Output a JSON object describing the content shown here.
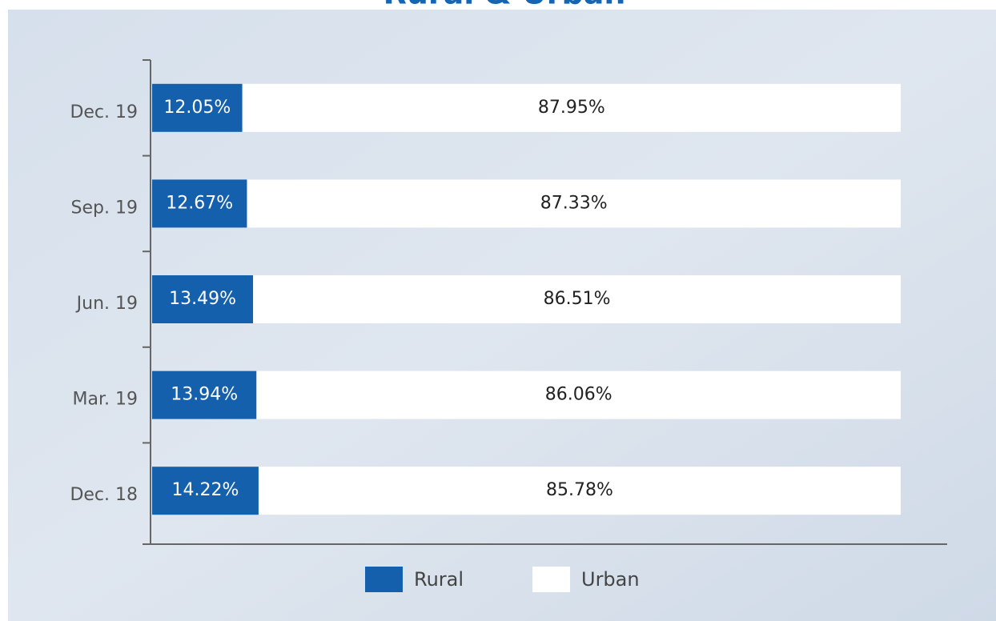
{
  "chart_data": {
    "type": "stacked-barh",
    "title": "Rural & Urban",
    "categories": [
      "Dec. 19",
      "Sep. 19",
      "Jun. 19",
      "Mar. 19",
      "Dec. 18"
    ],
    "series": [
      {
        "name": "Rural",
        "color": "#1560ac",
        "values": [
          12.05,
          12.67,
          13.49,
          13.94,
          14.22
        ],
        "value_labels": [
          "12.05%",
          "12.67%",
          "13.49%",
          "13.94%",
          "14.22%"
        ]
      },
      {
        "name": "Urban",
        "color": "#ffffff",
        "values": [
          87.95,
          87.33,
          86.51,
          86.06,
          85.78
        ],
        "value_labels": [
          "87.95%",
          "87.33%",
          "86.51%",
          "86.06%",
          "85.78%"
        ]
      }
    ],
    "xlim": [
      0,
      100
    ]
  }
}
